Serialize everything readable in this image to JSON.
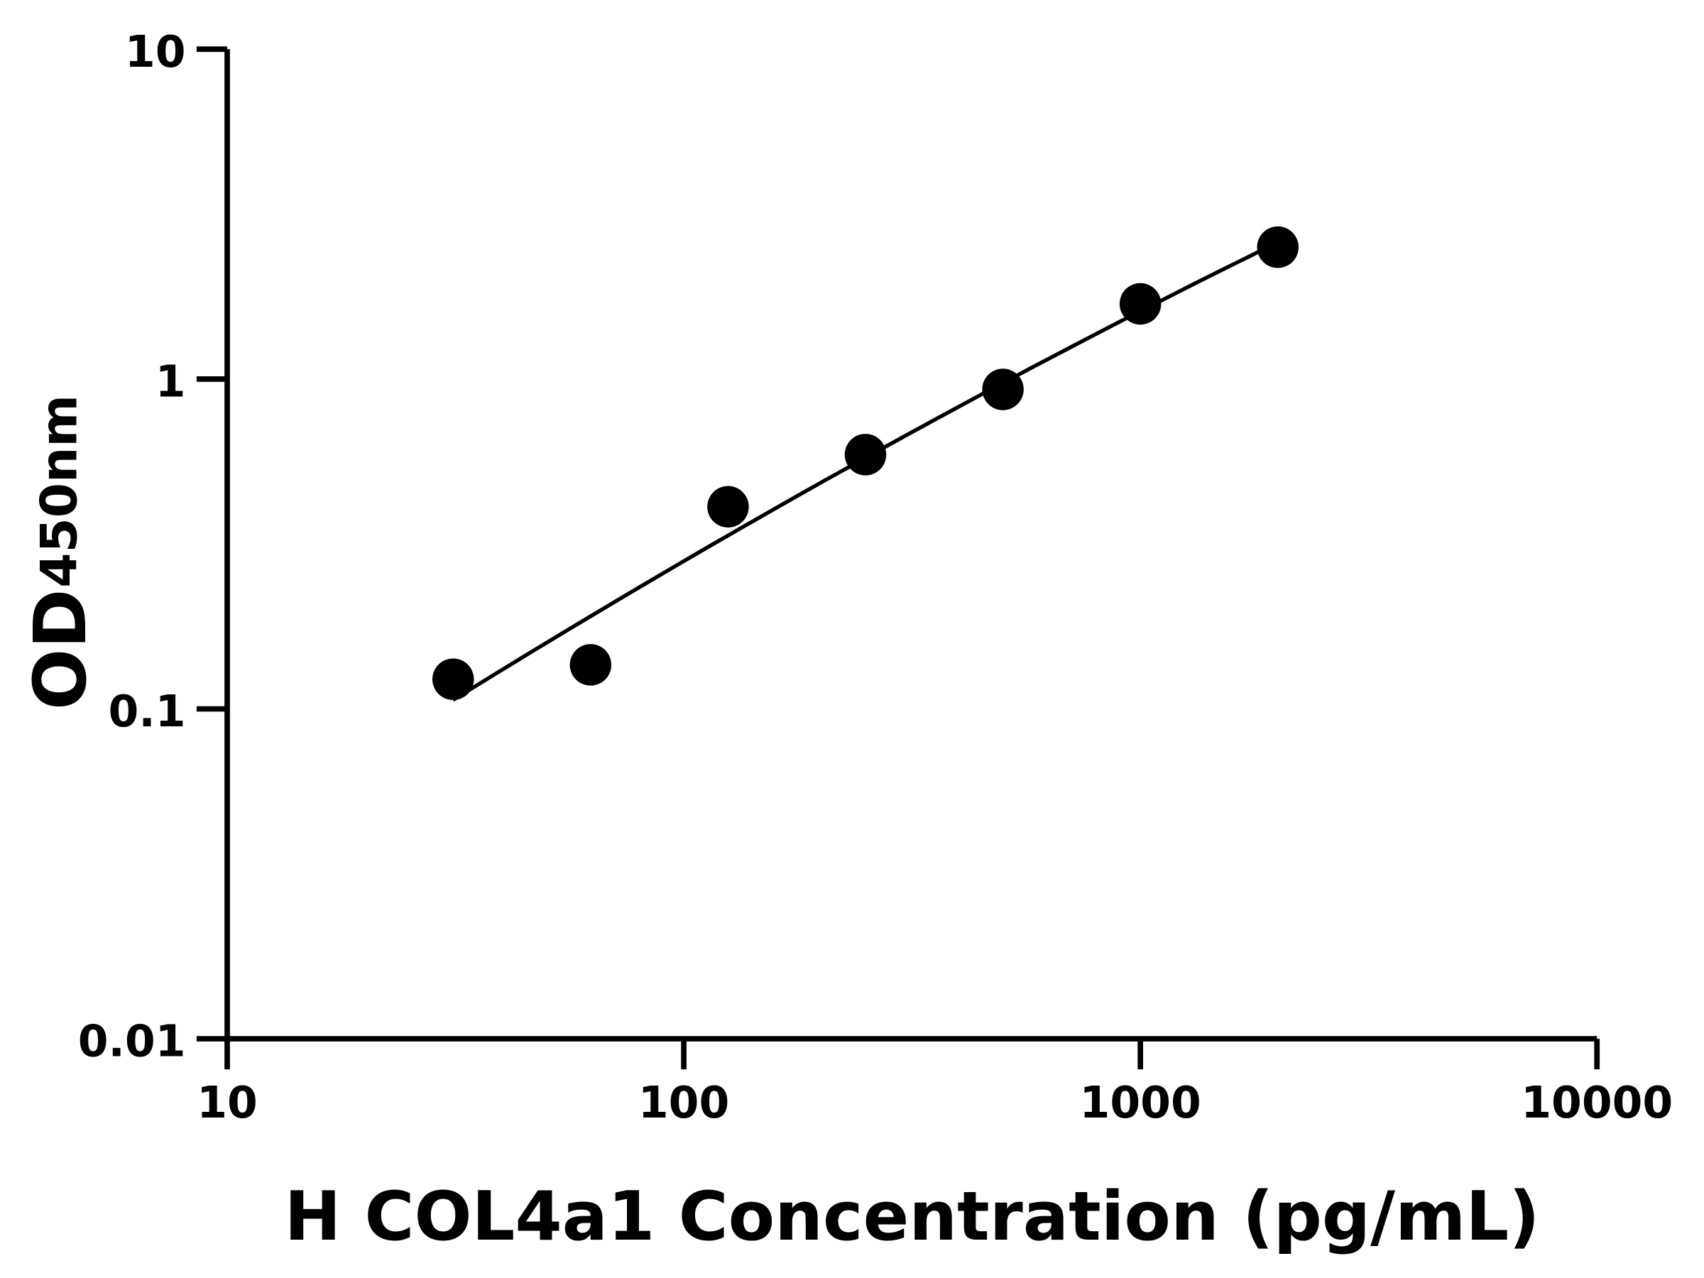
{
  "chart_data": {
    "type": "scatter",
    "xlabel": "H COL4a1 Concentration (pg/mL)",
    "ylabel_main": "OD",
    "ylabel_sub": "450nm",
    "x_scale": "log",
    "y_scale": "log",
    "xlim": [
      10,
      10000
    ],
    "ylim": [
      0.01,
      10
    ],
    "x_ticks": [
      "10",
      "100",
      "1000",
      "10000"
    ],
    "y_ticks": [
      "0.01",
      "0.1",
      "1",
      "10"
    ],
    "grid": false,
    "points": [
      {
        "x": 31.25,
        "y": 0.123
      },
      {
        "x": 62.5,
        "y": 0.136
      },
      {
        "x": 125,
        "y": 0.41
      },
      {
        "x": 250,
        "y": 0.59
      },
      {
        "x": 500,
        "y": 0.93
      },
      {
        "x": 1000,
        "y": 1.69
      },
      {
        "x": 2000,
        "y": 2.51
      }
    ],
    "fit_curve": true,
    "color": "#000000"
  }
}
